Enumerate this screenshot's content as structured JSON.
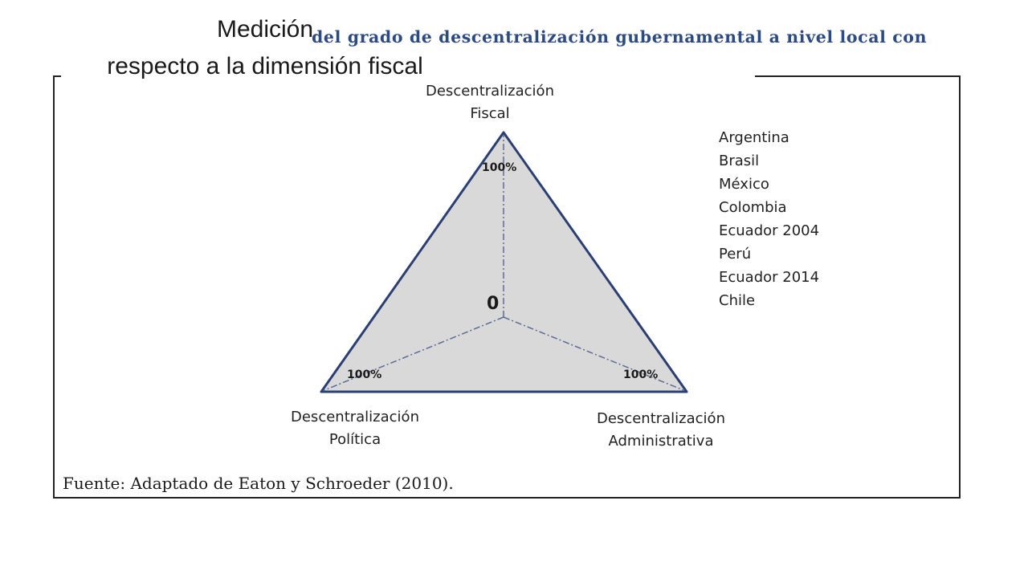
{
  "title": {
    "line1": "Medición",
    "line2": "respecto a la dimensión fiscal"
  },
  "header_text": "del grado de descentralización gubernamental a nivel local con",
  "axes": {
    "top": {
      "line1": "Descentralización",
      "line2": "Fiscal"
    },
    "left": {
      "line1": "Descentralización",
      "line2": "Política"
    },
    "right": {
      "line1": "Descentralización",
      "line2": "Administrativa"
    }
  },
  "scale": {
    "center": "0",
    "top_max": "100%",
    "left_max": "100%",
    "right_max": "100%"
  },
  "legend": [
    "Argentina",
    "Brasil",
    "México",
    "Colombia",
    "Ecuador 2004",
    "Perú",
    "Ecuador 2014",
    "Chile"
  ],
  "source": "Fuente: Adaptado de Eaton y Schroeder (2010).",
  "colors": {
    "triangle_fill": "#d9d9d9",
    "triangle_stroke": "#2b3f73",
    "axis_stroke": "#5a6c96",
    "header_text": "#2c4a84"
  }
}
